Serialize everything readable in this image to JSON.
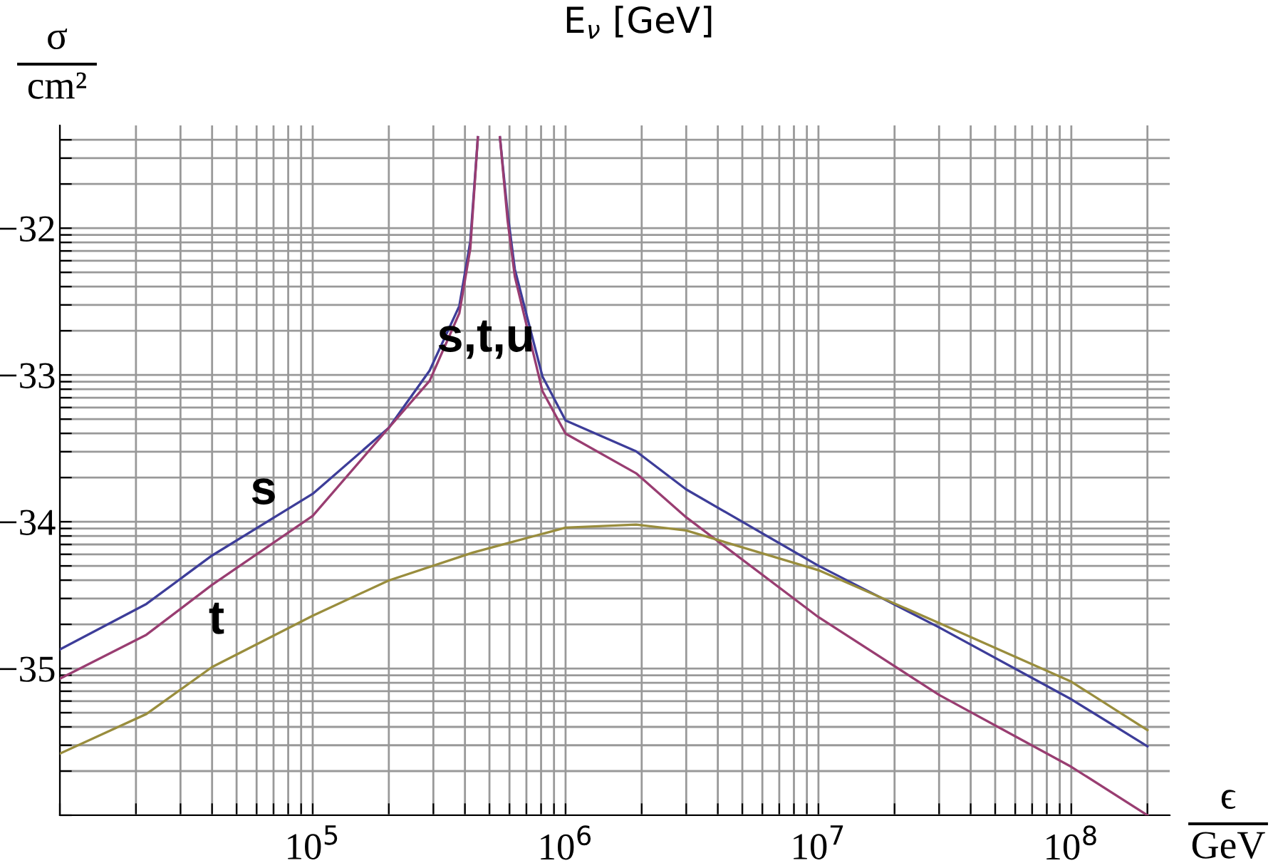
{
  "chart_data": {
    "type": "line",
    "title": "E$_{ν}$ [GeV]",
    "xlabel": "ϵ\nGeV",
    "ylabel": "σ\ncm²",
    "log": "x",
    "grid": true,
    "marker": "none",
    "line_style": "solid",
    "xlim": [
      10000,
      245000000
    ],
    "ylim": [
      -36,
      -31.3
    ],
    "xticks": [
      {
        "value": 10000,
        "label": null
      },
      {
        "value": 20000,
        "label": null
      },
      {
        "value": 30000,
        "label": null
      },
      {
        "value": 40000,
        "label": null
      },
      {
        "value": 50000,
        "label": null
      },
      {
        "value": 60000,
        "label": null
      },
      {
        "value": 70000,
        "label": null
      },
      {
        "value": 80000,
        "label": null
      },
      {
        "value": 90000,
        "label": null
      },
      {
        "value": 100000,
        "label": "10$^{5}$"
      },
      {
        "value": 200000,
        "label": null
      },
      {
        "value": 300000,
        "label": null
      },
      {
        "value": 400000,
        "label": null
      },
      {
        "value": 500000,
        "label": null
      },
      {
        "value": 600000,
        "label": null
      },
      {
        "value": 700000,
        "label": null
      },
      {
        "value": 800000,
        "label": null
      },
      {
        "value": 900000,
        "label": null
      },
      {
        "value": 1000000,
        "label": "10$^{6}$"
      },
      {
        "value": 2000000,
        "label": null
      },
      {
        "value": 3000000,
        "label": null
      },
      {
        "value": 4000000,
        "label": null
      },
      {
        "value": 5000000,
        "label": null
      },
      {
        "value": 6000000,
        "label": null
      },
      {
        "value": 7000000,
        "label": null
      },
      {
        "value": 8000000,
        "label": null
      },
      {
        "value": 9000000,
        "label": null
      },
      {
        "value": 10000000,
        "label": "10$^{7}$"
      },
      {
        "value": 20000000,
        "label": null
      },
      {
        "value": 30000000,
        "label": null
      },
      {
        "value": 40000000,
        "label": null
      },
      {
        "value": 50000000,
        "label": null
      },
      {
        "value": 60000000,
        "label": null
      },
      {
        "value": 70000000,
        "label": null
      },
      {
        "value": 80000000,
        "label": null
      },
      {
        "value": 90000000,
        "label": null
      },
      {
        "value": 100000000,
        "label": "10$^{8}$"
      },
      {
        "value": 200000000,
        "label": null
      }
    ],
    "yticks": [
      {
        "value": -36,
        "label": null
      },
      {
        "value": -35.699,
        "label": null
      },
      {
        "value": -35.523,
        "label": null
      },
      {
        "value": -35.398,
        "label": null
      },
      {
        "value": -35.301,
        "label": null
      },
      {
        "value": -35.222,
        "label": null
      },
      {
        "value": -35.155,
        "label": null
      },
      {
        "value": -35.097,
        "label": null
      },
      {
        "value": -35.046,
        "label": null
      },
      {
        "value": -35,
        "label": "−35"
      },
      {
        "value": -34.699,
        "label": null
      },
      {
        "value": -34.523,
        "label": null
      },
      {
        "value": -34.398,
        "label": null
      },
      {
        "value": -34.301,
        "label": null
      },
      {
        "value": -34.222,
        "label": null
      },
      {
        "value": -34.155,
        "label": null
      },
      {
        "value": -34.097,
        "label": null
      },
      {
        "value": -34.046,
        "label": null
      },
      {
        "value": -34,
        "label": "−34"
      },
      {
        "value": -33.699,
        "label": null
      },
      {
        "value": -33.523,
        "label": null
      },
      {
        "value": -33.398,
        "label": null
      },
      {
        "value": -33.301,
        "label": null
      },
      {
        "value": -33.222,
        "label": null
      },
      {
        "value": -33.155,
        "label": null
      },
      {
        "value": -33.097,
        "label": null
      },
      {
        "value": -33.046,
        "label": null
      },
      {
        "value": -33,
        "label": "−33"
      },
      {
        "value": -32.699,
        "label": null
      },
      {
        "value": -32.523,
        "label": null
      },
      {
        "value": -32.398,
        "label": null
      },
      {
        "value": -32.301,
        "label": null
      },
      {
        "value": -32.222,
        "label": null
      },
      {
        "value": -32.155,
        "label": null
      },
      {
        "value": -32.097,
        "label": null
      },
      {
        "value": -32.046,
        "label": null
      },
      {
        "value": -32,
        "label": "−32"
      },
      {
        "value": -31.699,
        "label": null
      },
      {
        "value": -31.523,
        "label": null
      },
      {
        "value": -31.398,
        "label": null
      }
    ],
    "series": [
      {
        "color": "#3d3d99",
        "x": [
          10000,
          22000,
          40000,
          100000,
          200000,
          290000,
          380000,
          420000,
          450000,
          500000,
          550000,
          590000,
          630000,
          810000,
          1000000,
          1900000,
          3000000,
          10000000,
          30000000,
          100000000,
          200000000
        ],
        "values": [
          -34.87,
          -34.56,
          -34.23,
          -33.81,
          -33.36,
          -32.97,
          -32.53,
          -32.09,
          -31.38,
          null,
          -31.38,
          -31.9,
          -32.28,
          -33.01,
          -33.31,
          -33.52,
          -33.78,
          -34.3,
          -34.72,
          -35.21,
          -35.53
        ]
      },
      {
        "color": "#993d71",
        "x": [
          10000,
          22000,
          40000,
          100000,
          200000,
          290000,
          380000,
          420000,
          450000,
          500000,
          550000,
          590000,
          630000,
          810000,
          1000000,
          1900000,
          3000000,
          10000000,
          30000000,
          100000000,
          200000000
        ],
        "values": [
          -35.07,
          -34.77,
          -34.43,
          -33.96,
          -33.36,
          -33.04,
          -32.58,
          -32.14,
          -31.38,
          null,
          -31.38,
          -31.95,
          -32.33,
          -33.11,
          -33.4,
          -33.67,
          -33.97,
          -34.65,
          -35.18,
          -35.67,
          -36.0
        ]
      },
      {
        "color": "#998d3d",
        "x": [
          10000,
          22000,
          40000,
          100000,
          200000,
          430000,
          1000000,
          1900000,
          3000000,
          10000000,
          30000000,
          100000000,
          200000000
        ],
        "values": [
          -35.58,
          -35.31,
          -34.99,
          -34.64,
          -34.4,
          -34.21,
          -34.04,
          -34.02,
          -34.06,
          -34.33,
          -34.69,
          -35.09,
          -35.42
        ]
      }
    ],
    "annotations": [
      "s,t,u",
      "s",
      "t"
    ]
  }
}
